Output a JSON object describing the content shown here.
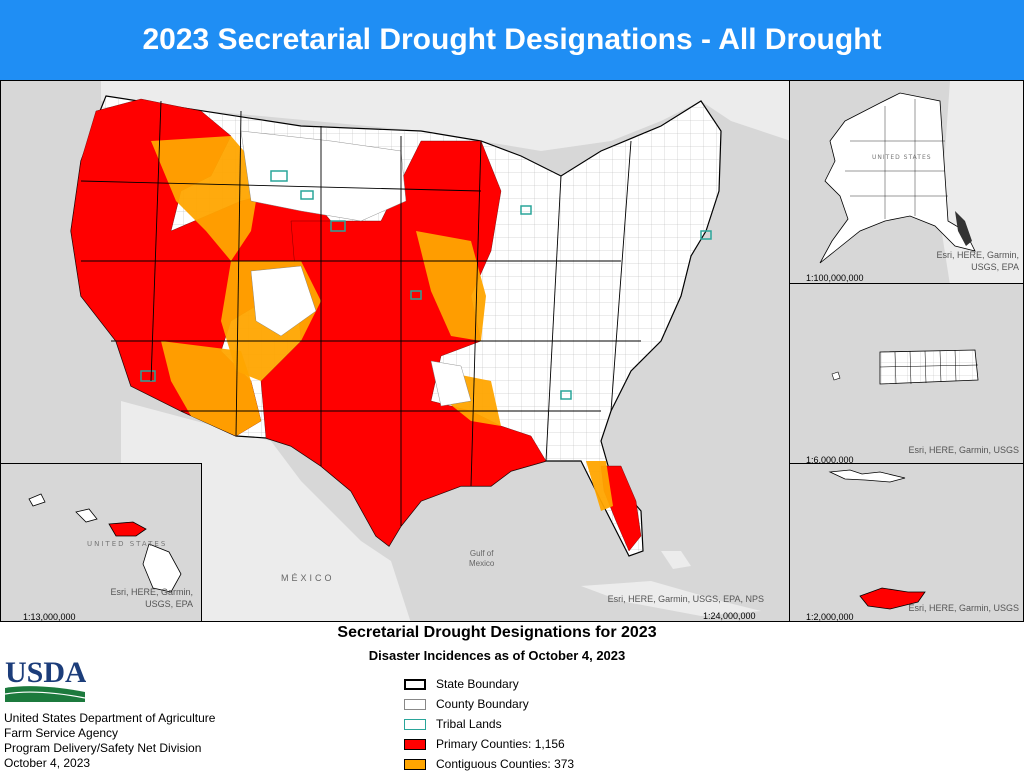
{
  "title": "2023 Secretarial Drought Designations - All Drought",
  "colors": {
    "primary": "#ff0000",
    "contiguous": "#ffa500",
    "tribal": "#2aa59a",
    "title_bar": "#1f8ef4",
    "land": "#ffffff",
    "water": "#d7d7d7"
  },
  "maps": {
    "main": {
      "attribution": "Esri, HERE, Garmin, USGS, EPA, NPS",
      "scale": "1:24,000,000",
      "mexico_label": "MÉXICO",
      "gulf_label_1": "Gulf of",
      "gulf_label_2": "Mexico"
    },
    "alaska": {
      "attribution_1": "Esri, HERE, Garmin,",
      "attribution_2": "USGS, EPA",
      "scale": "1:100,000,000",
      "country_label": "UNITED STATES"
    },
    "puerto_rico": {
      "attribution": "Esri, HERE, Garmin, USGS",
      "scale": "1:6,000,000"
    },
    "virgin_islands": {
      "attribution": "Esri, HERE, Garmin, USGS",
      "scale": "1:2,000,000"
    },
    "hawaii": {
      "attribution_1": "Esri, HERE, Garmin,",
      "attribution_2": "USGS, EPA",
      "scale": "1:13,000,000",
      "country_label": "UNITED STATES"
    }
  },
  "legend": {
    "title": "Secretarial Drought Designations for 2023",
    "subtitle": "Disaster Incidences as of October 4, 2023",
    "items": [
      {
        "label": "State Boundary",
        "kind": "state"
      },
      {
        "label": "County Boundary",
        "kind": "county"
      },
      {
        "label": "Tribal Lands",
        "kind": "tribal"
      },
      {
        "label": "Primary Counties: 1,156",
        "kind": "primary"
      },
      {
        "label": "Contiguous Counties: 373",
        "kind": "contiguous"
      }
    ]
  },
  "agency": {
    "logo_text": "USDA",
    "lines": [
      "United States Department of Agriculture",
      "Farm Service Agency",
      "Program Delivery/Safety Net Division",
      "October 4, 2023"
    ]
  }
}
